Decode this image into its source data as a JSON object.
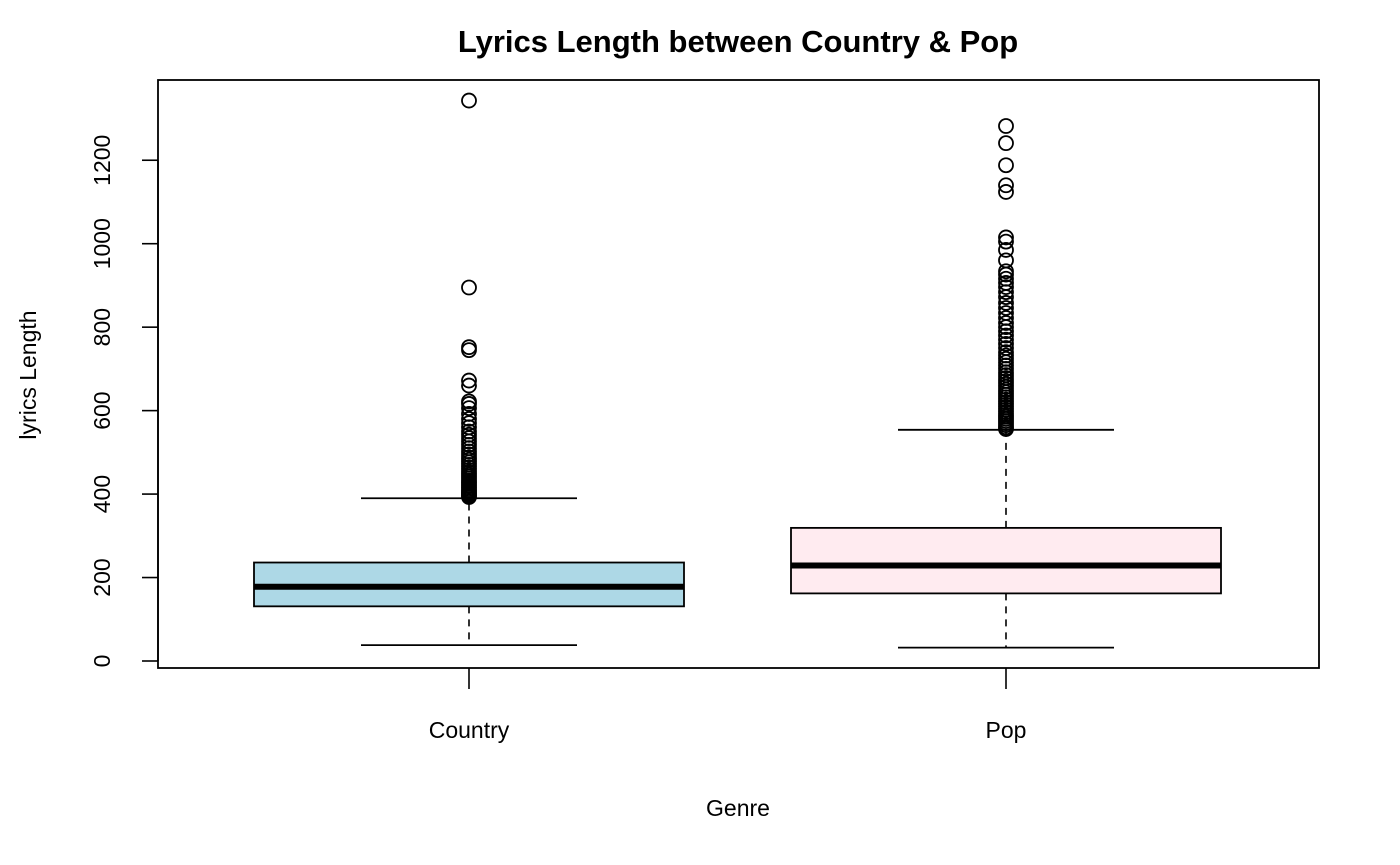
{
  "chart_data": {
    "type": "box",
    "title": "Lyrics Length between Country & Pop",
    "xlabel": "Genre",
    "ylabel": "lyrics Length",
    "categories": [
      "Country",
      "Pop"
    ],
    "y_ticks": [
      "0",
      "200",
      "400",
      "600",
      "800",
      "1000",
      "1200"
    ],
    "ylim": [
      -20,
      1390
    ],
    "grid": false,
    "legend": "none",
    "boxes": [
      {
        "category": "Country",
        "color": "#add8e6",
        "whisker_low": 38,
        "q1": 131,
        "median": 178,
        "q3": 236,
        "whisker_high": 390,
        "outliers": [
          393,
          396,
          399,
          402,
          405,
          408,
          412,
          416,
          420,
          424,
          428,
          432,
          437,
          442,
          447,
          452,
          458,
          464,
          470,
          476,
          482,
          488,
          495,
          502,
          510,
          518,
          526,
          534,
          542,
          550,
          560,
          570,
          580,
          592,
          606,
          616,
          622,
          660,
          672,
          745,
          752,
          895,
          1343
        ]
      },
      {
        "category": "Pop",
        "color": "#ffebf0",
        "whisker_low": 32,
        "q1": 162,
        "median": 229,
        "q3": 319,
        "whisker_high": 554,
        "outliers": [
          556,
          560,
          565,
          570,
          575,
          580,
          585,
          590,
          596,
          602,
          608,
          614,
          620,
          626,
          632,
          638,
          644,
          650,
          657,
          664,
          671,
          678,
          685,
          692,
          700,
          708,
          716,
          724,
          732,
          740,
          750,
          760,
          770,
          780,
          790,
          800,
          810,
          822,
          834,
          846,
          858,
          872,
          884,
          896,
          906,
          916,
          926,
          934,
          960,
          985,
          1005,
          1015,
          1124,
          1140,
          1188,
          1241,
          1282
        ]
      }
    ]
  }
}
